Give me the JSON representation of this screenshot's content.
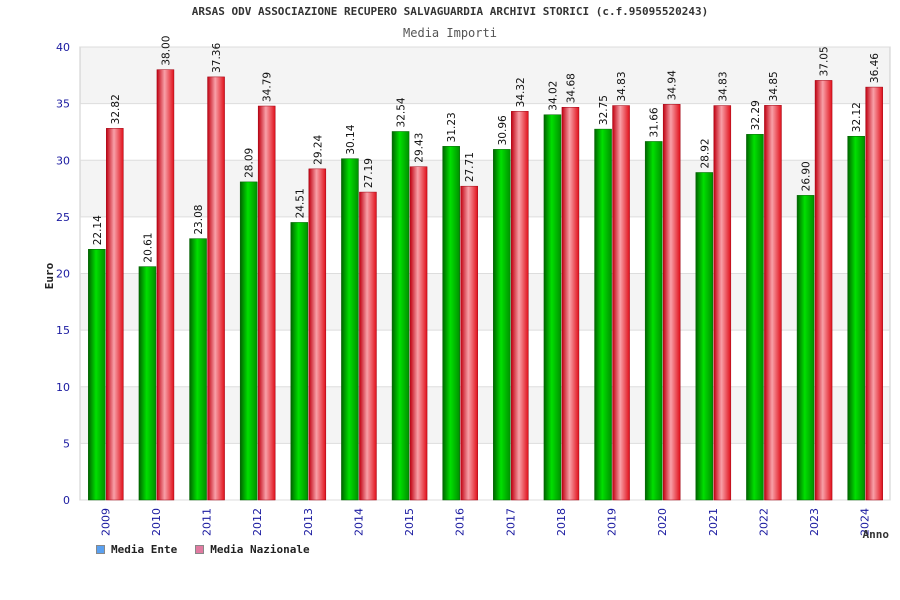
{
  "chart_data": {
    "type": "bar",
    "title": "ARSAS ODV ASSOCIAZIONE RECUPERO SALVAGUARDIA ARCHIVI STORICI (c.f.95095520243)",
    "subtitle": "Media Importi",
    "xlabel": "Anno",
    "ylabel": "Euro",
    "ylim": [
      0,
      40
    ],
    "yticks": [
      0,
      5,
      10,
      15,
      20,
      25,
      30,
      35,
      40
    ],
    "categories": [
      "2009",
      "2010",
      "2011",
      "2012",
      "2013",
      "2014",
      "2015",
      "2016",
      "2017",
      "2018",
      "2019",
      "2020",
      "2021",
      "2022",
      "2023",
      "2024"
    ],
    "series": [
      {
        "name": "Media Ente",
        "color": "#00a000",
        "values": [
          22.14,
          20.61,
          23.08,
          28.09,
          24.51,
          30.14,
          32.54,
          31.23,
          30.96,
          34.02,
          32.75,
          31.66,
          28.92,
          32.29,
          26.9,
          32.12
        ],
        "labels": [
          "22.14",
          "20.61",
          "23.08",
          "28.09",
          "24.51",
          "30.14",
          "32.54",
          "31.23",
          "30.96",
          "34.02",
          "32.75",
          "31.66",
          "28.92",
          "32.29",
          "26.90",
          "32.12"
        ]
      },
      {
        "name": "Media Nazionale",
        "color": "#e0101a",
        "values": [
          32.82,
          38.0,
          37.36,
          34.79,
          29.24,
          27.19,
          29.43,
          27.71,
          34.32,
          34.68,
          34.83,
          34.94,
          34.83,
          34.85,
          37.05,
          36.46
        ],
        "labels": [
          "32.82",
          "38.00",
          "37.36",
          "34.79",
          "29.24",
          "27.19",
          "29.43",
          "27.71",
          "34.32",
          "34.68",
          "34.83",
          "34.94",
          "34.83",
          "34.85",
          "37.05",
          "36.46"
        ]
      }
    ],
    "grid": true,
    "legend": "bottom-left",
    "legend_swatch_colors": [
      "#5aa0f0",
      "#e07aa0"
    ]
  }
}
